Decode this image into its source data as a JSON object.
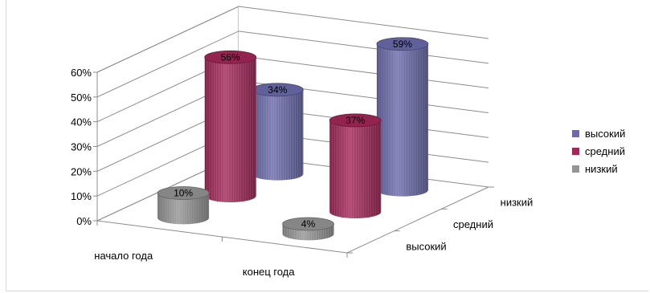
{
  "chart_data": {
    "type": "bar",
    "bar_style": "3d-cylinder",
    "categories": [
      "начало года",
      "конец года"
    ],
    "series": [
      {
        "name": "высокий",
        "values": [
          34,
          59
        ],
        "labels": [
          "34%",
          "59%"
        ],
        "color": "#6b6bab"
      },
      {
        "name": "средний",
        "values": [
          56,
          37
        ],
        "labels": [
          "56%",
          "37%"
        ],
        "color": "#a32859"
      },
      {
        "name": "низкий",
        "values": [
          10,
          4
        ],
        "labels": [
          "10%",
          "4%"
        ],
        "color": "#959595"
      }
    ],
    "depth_labels": [
      "низкий",
      "средний",
      "высокий"
    ],
    "y_ticks": [
      "0%",
      "10%",
      "20%",
      "30%",
      "40%",
      "50%",
      "60%"
    ],
    "ylim": [
      0,
      60
    ],
    "grid": true,
    "legend_position": "right"
  }
}
